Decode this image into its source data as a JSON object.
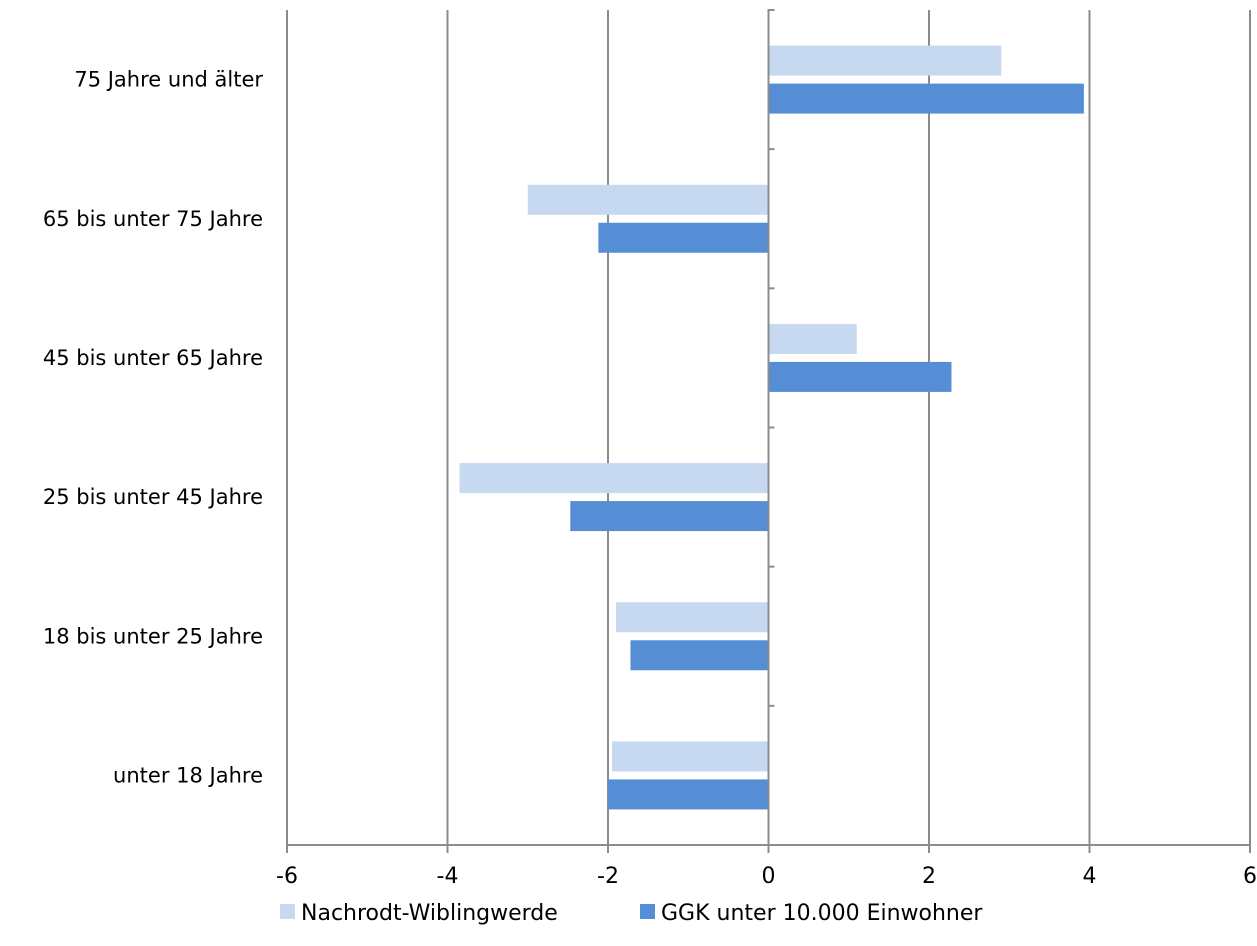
{
  "chart_data": {
    "type": "bar",
    "orientation": "horizontal",
    "categories": [
      "unter 18 Jahre",
      "18 bis unter 25 Jahre",
      "25 bis unter 45 Jahre",
      "45 bis unter 65 Jahre",
      "65 bis unter 75 Jahre",
      "75 Jahre und älter"
    ],
    "series": [
      {
        "name": "Nachrodt-Wiblingwerde",
        "color": "#c6d9f1",
        "values": [
          -1.95,
          -1.9,
          -3.85,
          1.1,
          -3.0,
          2.9
        ]
      },
      {
        "name": "GGK unter 10.000 Einwohner",
        "color": "#558ed5",
        "values": [
          -2.0,
          -1.72,
          -2.47,
          2.28,
          -2.12,
          3.93
        ]
      }
    ],
    "xlim": [
      -6,
      6
    ],
    "xticks": [
      -6,
      -4,
      -2,
      0,
      2,
      4,
      6
    ],
    "grid": "vertical",
    "legend": "bottom",
    "title": "",
    "xlabel": "",
    "ylabel": ""
  }
}
